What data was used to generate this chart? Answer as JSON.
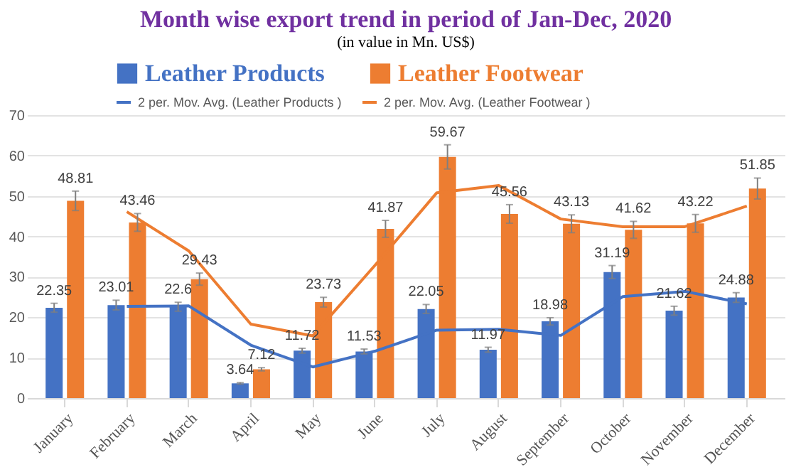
{
  "chart_data": {
    "type": "bar",
    "title": "Month wise export trend in period of Jan-Dec, 2020",
    "subtitle": "(in value in Mn. US$)",
    "categories": [
      "January",
      "February",
      "March",
      "April",
      "May",
      "June",
      "July",
      "August",
      "September",
      "October",
      "November",
      "December"
    ],
    "series": [
      {
        "name": "Leather Products",
        "color": "#4472c4",
        "values": [
          22.35,
          23.01,
          22.6,
          3.64,
          11.72,
          11.53,
          22.05,
          11.97,
          18.98,
          31.19,
          21.62,
          24.88
        ],
        "errors": [
          1.1,
          1.2,
          1.1,
          0.2,
          0.6,
          0.6,
          1.1,
          0.6,
          0.9,
          1.6,
          1.1,
          1.2
        ],
        "value_labels": [
          "22.35",
          "23.01",
          "22.6",
          "3.64",
          "11.72",
          "11.53",
          "22.05",
          "11.97",
          "18.98",
          "31.19",
          "21.62",
          "24.88"
        ]
      },
      {
        "name": "Leather Footwear",
        "color": "#ed7d31",
        "values": [
          48.81,
          43.46,
          29.43,
          7.12,
          23.73,
          41.87,
          59.67,
          45.56,
          43.13,
          41.62,
          43.22,
          51.85
        ],
        "errors": [
          2.4,
          2.2,
          1.5,
          0.4,
          1.2,
          2.1,
          3.0,
          2.3,
          2.2,
          2.1,
          2.2,
          2.6
        ],
        "value_labels": [
          "48.81",
          "43.46",
          "29.43",
          "7.12",
          "23.73",
          "41.87",
          "59.67",
          "45.56",
          "43.13",
          "41.62",
          "43.22",
          "51.85"
        ]
      },
      {
        "name": "2 per. Mov. Avg. (Leather Products )",
        "type": "line",
        "color": "#4472c4",
        "values": [
          null,
          22.7,
          22.8,
          13.1,
          7.7,
          11.6,
          16.8,
          17.0,
          15.5,
          25.1,
          26.4,
          23.3
        ]
      },
      {
        "name": "2 per. Mov. Avg. (Leather Footwear )",
        "type": "line",
        "color": "#ed7d31",
        "values": [
          null,
          46.1,
          36.4,
          18.3,
          15.4,
          32.8,
          50.8,
          52.6,
          44.3,
          42.4,
          42.4,
          47.5
        ]
      }
    ],
    "ylim": [
      0,
      70
    ],
    "yticks": [
      0,
      10,
      20,
      30,
      40,
      50,
      60,
      70
    ],
    "grid": "y",
    "legend": "top"
  }
}
